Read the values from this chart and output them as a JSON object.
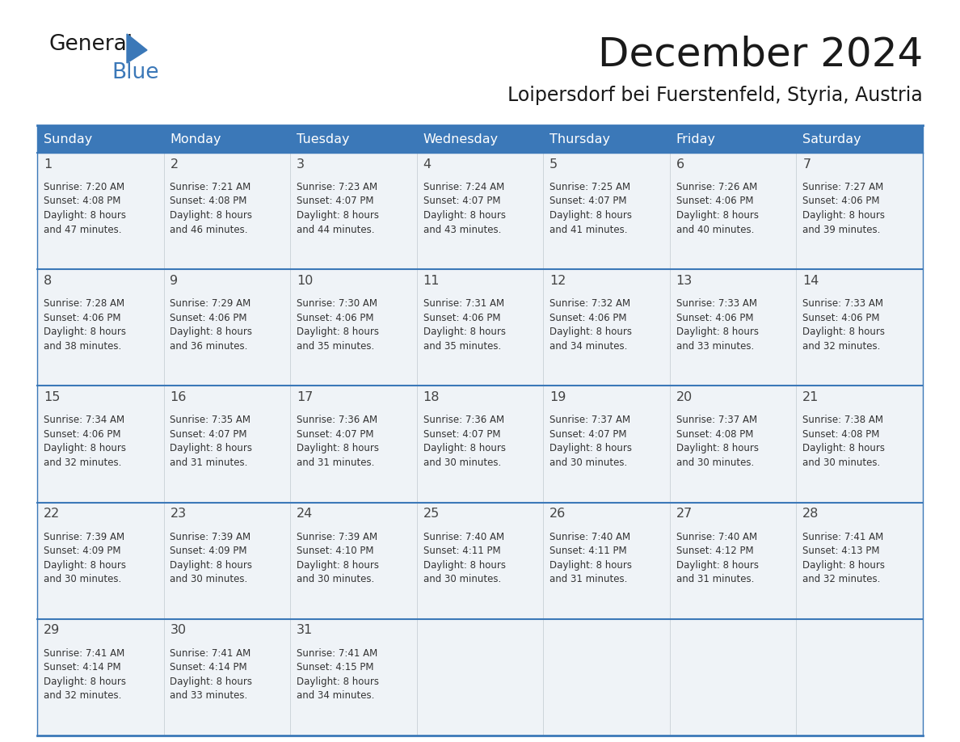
{
  "title": "December 2024",
  "subtitle": "Loipersdorf bei Fuerstenfeld, Styria, Austria",
  "header_bg_color": "#3b78b8",
  "header_text_color": "#ffffff",
  "cell_bg_color": "#eff3f7",
  "border_color": "#3b78b8",
  "text_color": "#333333",
  "days_of_week": [
    "Sunday",
    "Monday",
    "Tuesday",
    "Wednesday",
    "Thursday",
    "Friday",
    "Saturday"
  ],
  "calendar_data": [
    [
      {
        "day": "1",
        "sunrise": "7:20 AM",
        "sunset": "4:08 PM",
        "daylight_min": "47"
      },
      {
        "day": "2",
        "sunrise": "7:21 AM",
        "sunset": "4:08 PM",
        "daylight_min": "46"
      },
      {
        "day": "3",
        "sunrise": "7:23 AM",
        "sunset": "4:07 PM",
        "daylight_min": "44"
      },
      {
        "day": "4",
        "sunrise": "7:24 AM",
        "sunset": "4:07 PM",
        "daylight_min": "43"
      },
      {
        "day": "5",
        "sunrise": "7:25 AM",
        "sunset": "4:07 PM",
        "daylight_min": "41"
      },
      {
        "day": "6",
        "sunrise": "7:26 AM",
        "sunset": "4:06 PM",
        "daylight_min": "40"
      },
      {
        "day": "7",
        "sunrise": "7:27 AM",
        "sunset": "4:06 PM",
        "daylight_min": "39"
      }
    ],
    [
      {
        "day": "8",
        "sunrise": "7:28 AM",
        "sunset": "4:06 PM",
        "daylight_min": "38"
      },
      {
        "day": "9",
        "sunrise": "7:29 AM",
        "sunset": "4:06 PM",
        "daylight_min": "36"
      },
      {
        "day": "10",
        "sunrise": "7:30 AM",
        "sunset": "4:06 PM",
        "daylight_min": "35"
      },
      {
        "day": "11",
        "sunrise": "7:31 AM",
        "sunset": "4:06 PM",
        "daylight_min": "35"
      },
      {
        "day": "12",
        "sunrise": "7:32 AM",
        "sunset": "4:06 PM",
        "daylight_min": "34"
      },
      {
        "day": "13",
        "sunrise": "7:33 AM",
        "sunset": "4:06 PM",
        "daylight_min": "33"
      },
      {
        "day": "14",
        "sunrise": "7:33 AM",
        "sunset": "4:06 PM",
        "daylight_min": "32"
      }
    ],
    [
      {
        "day": "15",
        "sunrise": "7:34 AM",
        "sunset": "4:06 PM",
        "daylight_min": "32"
      },
      {
        "day": "16",
        "sunrise": "7:35 AM",
        "sunset": "4:07 PM",
        "daylight_min": "31"
      },
      {
        "day": "17",
        "sunrise": "7:36 AM",
        "sunset": "4:07 PM",
        "daylight_min": "31"
      },
      {
        "day": "18",
        "sunrise": "7:36 AM",
        "sunset": "4:07 PM",
        "daylight_min": "30"
      },
      {
        "day": "19",
        "sunrise": "7:37 AM",
        "sunset": "4:07 PM",
        "daylight_min": "30"
      },
      {
        "day": "20",
        "sunrise": "7:37 AM",
        "sunset": "4:08 PM",
        "daylight_min": "30"
      },
      {
        "day": "21",
        "sunrise": "7:38 AM",
        "sunset": "4:08 PM",
        "daylight_min": "30"
      }
    ],
    [
      {
        "day": "22",
        "sunrise": "7:39 AM",
        "sunset": "4:09 PM",
        "daylight_min": "30"
      },
      {
        "day": "23",
        "sunrise": "7:39 AM",
        "sunset": "4:09 PM",
        "daylight_min": "30"
      },
      {
        "day": "24",
        "sunrise": "7:39 AM",
        "sunset": "4:10 PM",
        "daylight_min": "30"
      },
      {
        "day": "25",
        "sunrise": "7:40 AM",
        "sunset": "4:11 PM",
        "daylight_min": "30"
      },
      {
        "day": "26",
        "sunrise": "7:40 AM",
        "sunset": "4:11 PM",
        "daylight_min": "31"
      },
      {
        "day": "27",
        "sunrise": "7:40 AM",
        "sunset": "4:12 PM",
        "daylight_min": "31"
      },
      {
        "day": "28",
        "sunrise": "7:41 AM",
        "sunset": "4:13 PM",
        "daylight_min": "32"
      }
    ],
    [
      {
        "day": "29",
        "sunrise": "7:41 AM",
        "sunset": "4:14 PM",
        "daylight_min": "32"
      },
      {
        "day": "30",
        "sunrise": "7:41 AM",
        "sunset": "4:14 PM",
        "daylight_min": "33"
      },
      {
        "day": "31",
        "sunrise": "7:41 AM",
        "sunset": "4:15 PM",
        "daylight_min": "34"
      },
      null,
      null,
      null,
      null
    ]
  ],
  "logo_text_general": "General",
  "logo_text_blue": "Blue",
  "logo_color_general": "#1a1a1a",
  "logo_color_blue": "#3b78b8"
}
